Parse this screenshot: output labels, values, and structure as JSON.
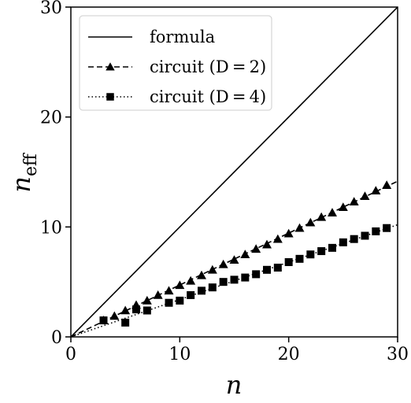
{
  "chart_data": {
    "type": "line",
    "xlabel": "n",
    "ylabel_base": "n",
    "ylabel_sub": "eff",
    "xlim": [
      0,
      30
    ],
    "ylim": [
      0,
      30
    ],
    "xticks": [
      0,
      10,
      20,
      30
    ],
    "yticks": [
      0,
      10,
      20,
      30
    ],
    "grid": false,
    "legend_position": "top-left",
    "series": [
      {
        "name": "formula",
        "style": "solid",
        "marker": "none",
        "x": [
          0,
          30
        ],
        "y": [
          0,
          30
        ]
      },
      {
        "name": "circuit (D = 2)",
        "style": "dashed",
        "marker": "triangle",
        "fit_slope": 0.472,
        "x": [
          3,
          4,
          5,
          6,
          7,
          8,
          9,
          10,
          11,
          12,
          13,
          14,
          15,
          16,
          17,
          18,
          19,
          20,
          21,
          22,
          23,
          24,
          25,
          26,
          27,
          28,
          29
        ],
        "y": [
          1.5,
          1.9,
          2.4,
          2.9,
          3.3,
          3.8,
          4.2,
          4.7,
          5.1,
          5.6,
          6.1,
          6.6,
          7.0,
          7.5,
          8.0,
          8.4,
          8.9,
          9.4,
          9.9,
          10.4,
          10.9,
          11.3,
          11.8,
          12.3,
          12.8,
          13.3,
          13.8
        ]
      },
      {
        "name": "circuit (D = 4)",
        "style": "dotted",
        "marker": "square",
        "fit_slope": 0.34,
        "x": [
          3,
          5,
          6,
          7,
          9,
          10,
          11,
          12,
          13,
          14,
          15,
          16,
          17,
          18,
          19,
          20,
          21,
          22,
          23,
          24,
          25,
          26,
          27,
          28,
          29
        ],
        "y": [
          1.5,
          1.3,
          2.5,
          2.4,
          3.1,
          3.3,
          3.8,
          4.2,
          4.5,
          5.0,
          5.2,
          5.4,
          5.7,
          6.1,
          6.3,
          6.8,
          7.1,
          7.5,
          7.8,
          8.1,
          8.6,
          8.9,
          9.2,
          9.6,
          9.9
        ]
      }
    ]
  }
}
